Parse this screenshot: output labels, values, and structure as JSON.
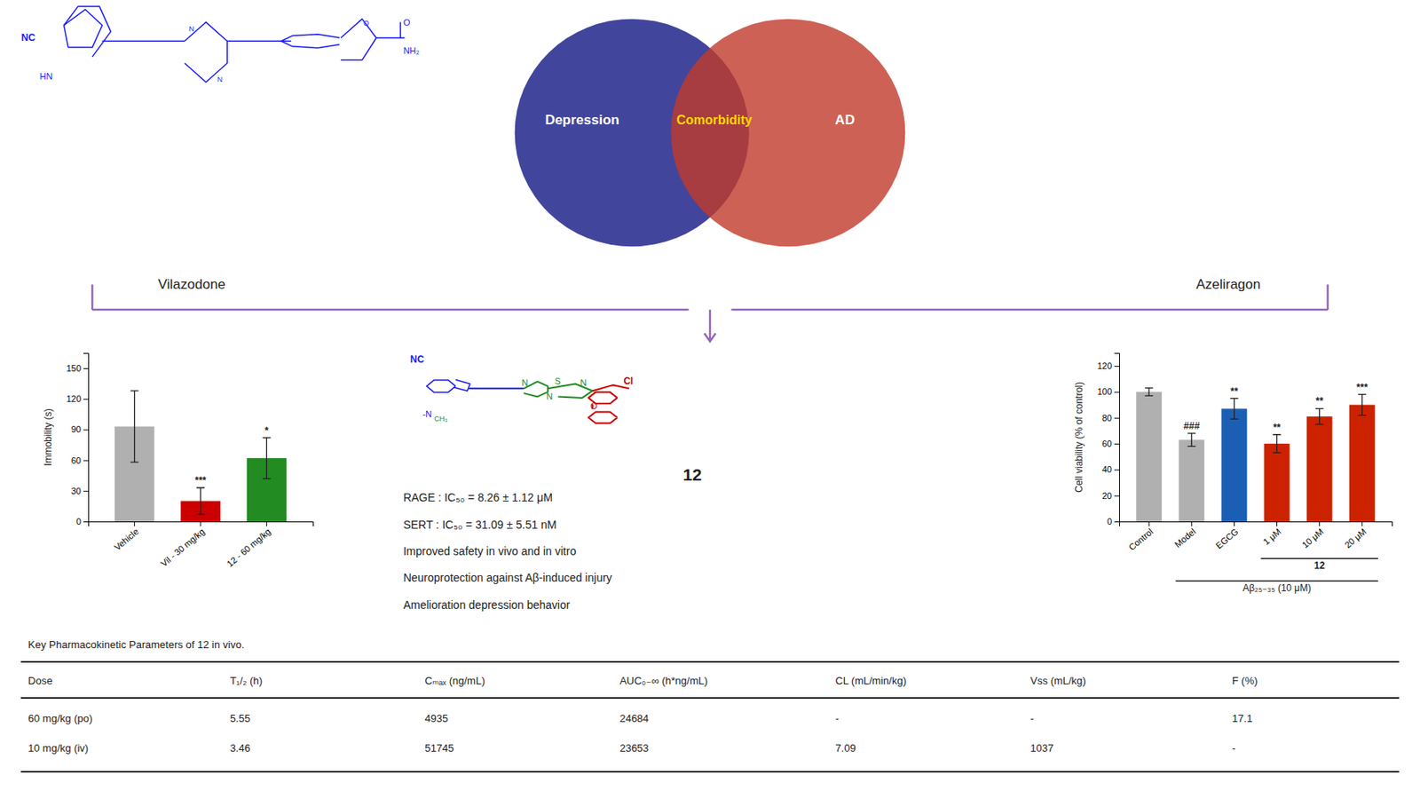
{
  "chart_data": [
    {
      "type": "venn",
      "sets": [
        {
          "name": "Depression",
          "color": "#2e3191"
        },
        {
          "name": "AD",
          "color": "#c0392b"
        }
      ],
      "intersection": "Comorbidity",
      "annotations": [
        "Vilazodone",
        "Azeliragon"
      ],
      "structure": {
        "colors": [
          "#1a1aff"
        ],
        "atoms": [
          {
            "label": "NC",
            "color": "#1a1aff"
          },
          {
            "label": "HN",
            "color": "#1a1aff"
          },
          {
            "label": "N",
            "color": "#1a1aff"
          },
          {
            "label": "N",
            "color": "#1a1aff"
          },
          {
            "label": "O",
            "color": "#1a1aff"
          },
          {
            "label": "O",
            "color": "#1a1aff"
          },
          {
            "label": "NH₂",
            "color": "#1a1aff"
          }
        ]
      }
    },
    {
      "type": "bar",
      "categories": [
        "Vehicle",
        "Vil - 30 mg/kg",
        "12 - 60 mg/kg"
      ],
      "values": [
        93,
        20,
        62
      ],
      "errors": [
        35,
        13,
        20
      ],
      "colors": [
        "#b0b0b0",
        "#cc0000",
        "#228B22"
      ],
      "significance": [
        null,
        "***",
        "*"
      ],
      "ylabel": "Immobility (s)",
      "ylim": [
        0,
        165
      ],
      "yticks": [
        0,
        30,
        60,
        90,
        120,
        150
      ]
    },
    {
      "type": "text",
      "title": "12",
      "annotations": [
        "RAGE : IC₅₀ = 8.26 ± 1.12 μM",
        "SERT : IC₅₀ = 31.09 ± 5.51 nM",
        "Improved safety in vivo and in vitro",
        "Neuroprotection against Aβ-induced injury",
        "Amelioration depression behavior"
      ],
      "structure": {
        "colors": [
          "#1a1aff",
          "#228B22",
          "#cc0000"
        ],
        "atoms": [
          {
            "label": "NC",
            "color": "#1a1aff"
          },
          {
            "label": "-N",
            "color": "#1a1aff"
          },
          {
            "label": "CH₃",
            "color": "#228B22"
          },
          {
            "label": "N",
            "color": "#228B22"
          },
          {
            "label": "N",
            "color": "#228B22"
          },
          {
            "label": "S",
            "color": "#228B22"
          },
          {
            "label": "N",
            "color": "#228B22"
          },
          {
            "label": "Cl",
            "color": "#cc0000"
          },
          {
            "label": "O",
            "color": "#cc0000"
          }
        ]
      }
    },
    {
      "type": "bar",
      "categories": [
        "Control",
        "Model",
        "EGCG",
        "1 μM",
        "10 μM",
        "20 μM"
      ],
      "values": [
        100,
        63,
        87,
        60,
        81,
        90
      ],
      "errors": [
        3,
        5,
        8,
        7,
        6,
        8
      ],
      "colors": [
        "#b0b0b0",
        "#b0b0b0",
        "#1a5fb4",
        "#cc2200",
        "#cc2200",
        "#cc2200"
      ],
      "significance": [
        null,
        "###",
        "**",
        "**",
        "**",
        "***"
      ],
      "ylabel": "Cell viability (% of control)",
      "ylim": [
        0,
        130
      ],
      "yticks": [
        0,
        20,
        40,
        60,
        80,
        100,
        120
      ],
      "groups": [
        {
          "label": "12",
          "categories": [
            "1 μM",
            "10 μM",
            "20 μM"
          ]
        },
        {
          "label": "Aβ₂₅₋₃₅ (10 μM)",
          "categories": [
            "Model",
            "EGCG",
            "1 μM",
            "10 μM",
            "20 μM"
          ]
        }
      ]
    },
    {
      "type": "table",
      "title": "Key Pharmacokinetic Parameters of 12 in vivo.",
      "columns": [
        "Dose",
        "T₁/₂ (h)",
        "Cₘₐₓ (ng/mL)",
        "AUC₀₋∞ (h*ng/mL)",
        "CL (mL/min/kg)",
        "Vss (mL/kg)",
        "F (%)"
      ],
      "rows": [
        [
          "60 mg/kg (po)",
          "5.55",
          "4935",
          "24684",
          "-",
          "-",
          "17.1"
        ],
        [
          "10 mg/kg (iv)",
          "3.46",
          "51745",
          "23653",
          "7.09",
          "1037",
          "-"
        ]
      ]
    }
  ]
}
